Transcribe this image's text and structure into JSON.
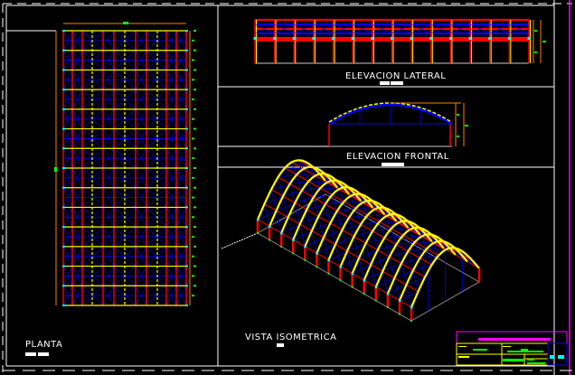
{
  "views": {
    "plan": {
      "label": "PLANTA"
    },
    "lateral": {
      "label": "ELEVACION LATERAL"
    },
    "frontal": {
      "label": "ELEVACION FRONTAL"
    },
    "isometric": {
      "label": "VISTA ISOMETRICA"
    }
  },
  "colors": {
    "background": "#000000",
    "frame": "#ffffff",
    "columns": "#ff0000",
    "arches": "#ffff00",
    "bracing": "#0000ff",
    "dimensions": "#ff8000",
    "dimension_text": "#00ff00",
    "nodes": "#00ffff",
    "title_block": "#ff00ff"
  }
}
